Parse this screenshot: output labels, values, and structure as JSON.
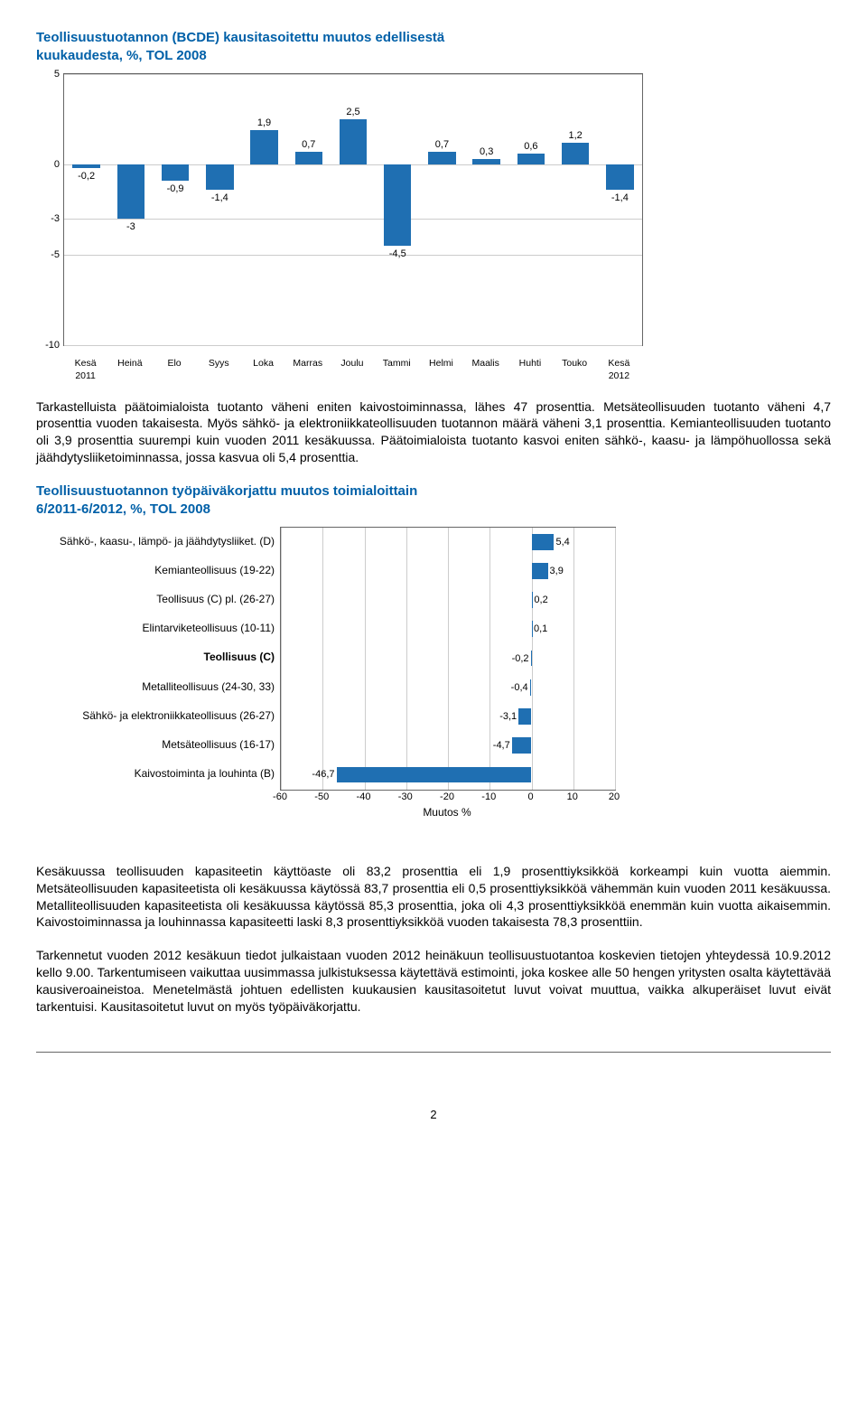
{
  "chart1": {
    "title_line1": "Teollisuustuotannon (BCDE) kausitasoitettu muutos edellisestä",
    "title_line2": "kuukaudesta, %, TOL 2008",
    "type": "bar",
    "categories": [
      "Kesä\n2011",
      "Heinä",
      "Elo",
      "Syys",
      "Loka",
      "Marras",
      "Joulu",
      "Tammi",
      "Helmi",
      "Maalis",
      "Huhti",
      "Touko",
      "Kesä\n2012"
    ],
    "values": [
      -0.2,
      -3,
      -0.9,
      -1.4,
      1.9,
      0.7,
      2.5,
      -4.5,
      0.7,
      0.3,
      0.6,
      1.2,
      -1.4
    ],
    "value_labels": [
      "-0,2",
      "-3",
      "-0,9",
      "-1,4",
      "1,9",
      "0,7",
      "2,5",
      "-4,5",
      "0,7",
      "0,3",
      "0,6",
      "1,2",
      "-1,4"
    ],
    "ylim": [
      -10,
      5
    ],
    "yticks": [
      -10,
      -5,
      -3,
      0,
      5
    ],
    "ytick_labels": [
      "-10",
      "-5",
      "-3",
      "0",
      "5"
    ],
    "bar_color": "#1f6fb2",
    "grid_color": "#cccccc",
    "background_color": "#ffffff",
    "axis_fontsize": 11
  },
  "para1": "Tarkastelluista päätoimialoista tuotanto väheni eniten kaivostoiminnassa, lähes 47 prosenttia. Metsäteollisuuden tuotanto väheni 4,7 prosenttia vuoden takaisesta. Myös sähkö- ja elektroniikkateollisuuden tuotannon määrä väheni 3,1 prosenttia. Kemianteollisuuden tuotanto oli 3,9 prosenttia suurempi kuin vuoden 2011 kesäkuussa. Päätoimialoista tuotanto kasvoi eniten sähkö-, kaasu- ja lämpöhuollossa sekä jäähdytysliiketoiminnassa, jossa kasvua oli 5,4 prosenttia.",
  "chart2": {
    "title_line1": "Teollisuustuotannon työpäiväkorjattu muutos toimialoittain",
    "title_line2": "6/2011-6/2012, %, TOL 2008",
    "type": "hbar",
    "categories": [
      "Sähkö-, kaasu-, lämpö- ja jäähdytysliiket. (D)",
      "Kemianteollisuus (19-22)",
      "Teollisuus (C) pl. (26-27)",
      "Elintarviketeollisuus (10-11)",
      "Teollisuus (C)",
      "Metalliteollisuus (24-30, 33)",
      "Sähkö- ja elektroniikkateollisuus (26-27)",
      "Metsäteollisuus (16-17)",
      "Kaivostoiminta ja louhinta (B)"
    ],
    "bold_index": 4,
    "values": [
      5.4,
      3.9,
      0.2,
      0.1,
      -0.2,
      -0.4,
      -3.1,
      -4.7,
      -46.7
    ],
    "value_labels": [
      "5,4",
      "3,9",
      "0,2",
      "0,1",
      "-0,2",
      "-0,4",
      "-3,1",
      "-4,7",
      "-46,7"
    ],
    "xlim": [
      -60,
      20
    ],
    "xticks": [
      -60,
      -50,
      -40,
      -30,
      -20,
      -10,
      0,
      10,
      20
    ],
    "xlabel": "Muutos %",
    "bar_color": "#1f6fb2",
    "grid_color": "#cccccc",
    "axis_fontsize": 11
  },
  "para2": "Kesäkuussa teollisuuden kapasiteetin käyttöaste oli 83,2 prosenttia eli 1,9 prosenttiyksikköä korkeampi kuin vuotta aiemmin. Metsäteollisuuden kapasiteetista oli kesäkuussa käytössä 83,7 prosenttia eli 0,5 prosenttiyksikköä vähemmän kuin vuoden 2011 kesäkuussa. Metalliteollisuuden kapasiteetista oli kesäkuussa käytössä 85,3 prosenttia, joka oli 4,3 prosenttiyksikköä enemmän kuin vuotta aikaisemmin. Kaivostoiminnassa ja louhinnassa kapasiteetti laski 8,3 prosenttiyksikköä vuoden takaisesta 78,3 prosenttiin.",
  "para3": "Tarkennetut vuoden 2012 kesäkuun tiedot julkaistaan vuoden 2012 heinäkuun teollisuustuotantoa koskevien tietojen yhteydessä 10.9.2012 kello 9.00. Tarkentumiseen vaikuttaa uusimmassa julkistuksessa käytettävä estimointi, joka koskee alle 50 hengen yritysten osalta käytettävää kausiveroaineistoa. Menetelmästä johtuen edellisten kuukausien kausitasoitetut luvut voivat muuttua, vaikka alkuperäiset luvut eivät tarkentuisi. Kausitasoitetut luvut on myös työpäiväkorjattu.",
  "page_number": "2"
}
